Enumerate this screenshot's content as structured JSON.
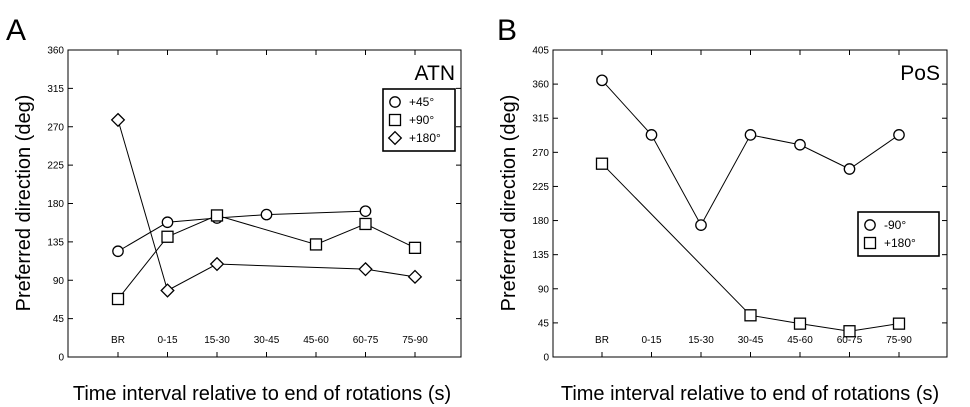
{
  "chart_data": [
    {
      "type": "line",
      "panel": "A",
      "region": "ATN",
      "xlabel": "Time interval relative to end of rotations (s)",
      "ylabel": "Preferred direction (deg)",
      "categories": [
        "BR",
        "0-15",
        "15-30",
        "30-45",
        "45-60",
        "60-75",
        "75-90"
      ],
      "ylim": [
        0,
        360
      ],
      "yticks": [
        "0",
        "45",
        "90",
        "135",
        "180",
        "225",
        "270",
        "315",
        "360"
      ],
      "legend_position": "top-right",
      "series": [
        {
          "name": "+45°",
          "marker": "circle",
          "values": [
            124,
            158,
            163,
            167,
            null,
            171,
            null
          ]
        },
        {
          "name": "+90°",
          "marker": "square",
          "values": [
            68,
            141,
            166,
            null,
            132,
            156,
            128
          ]
        },
        {
          "name": "+180°",
          "marker": "diamond",
          "values": [
            278,
            78,
            109,
            null,
            null,
            103,
            94
          ]
        }
      ]
    },
    {
      "type": "line",
      "panel": "B",
      "region": "PoS",
      "xlabel": "Time interval relative to end of rotations (s)",
      "ylabel": "Preferred direction (deg)",
      "categories": [
        "BR",
        "0-15",
        "15-30",
        "30-45",
        "45-60",
        "60-75",
        "75-90"
      ],
      "ylim": [
        0,
        405
      ],
      "yticks": [
        "0",
        "45",
        "90",
        "135",
        "180",
        "225",
        "270",
        "315",
        "360",
        "405"
      ],
      "legend_position": "middle-right",
      "series": [
        {
          "name": "-90°",
          "marker": "circle",
          "values": [
            365,
            293,
            174,
            293,
            280,
            248,
            293
          ]
        },
        {
          "name": "+180°",
          "marker": "square",
          "values": [
            255,
            null,
            null,
            55,
            44,
            34,
            44
          ]
        }
      ]
    }
  ]
}
